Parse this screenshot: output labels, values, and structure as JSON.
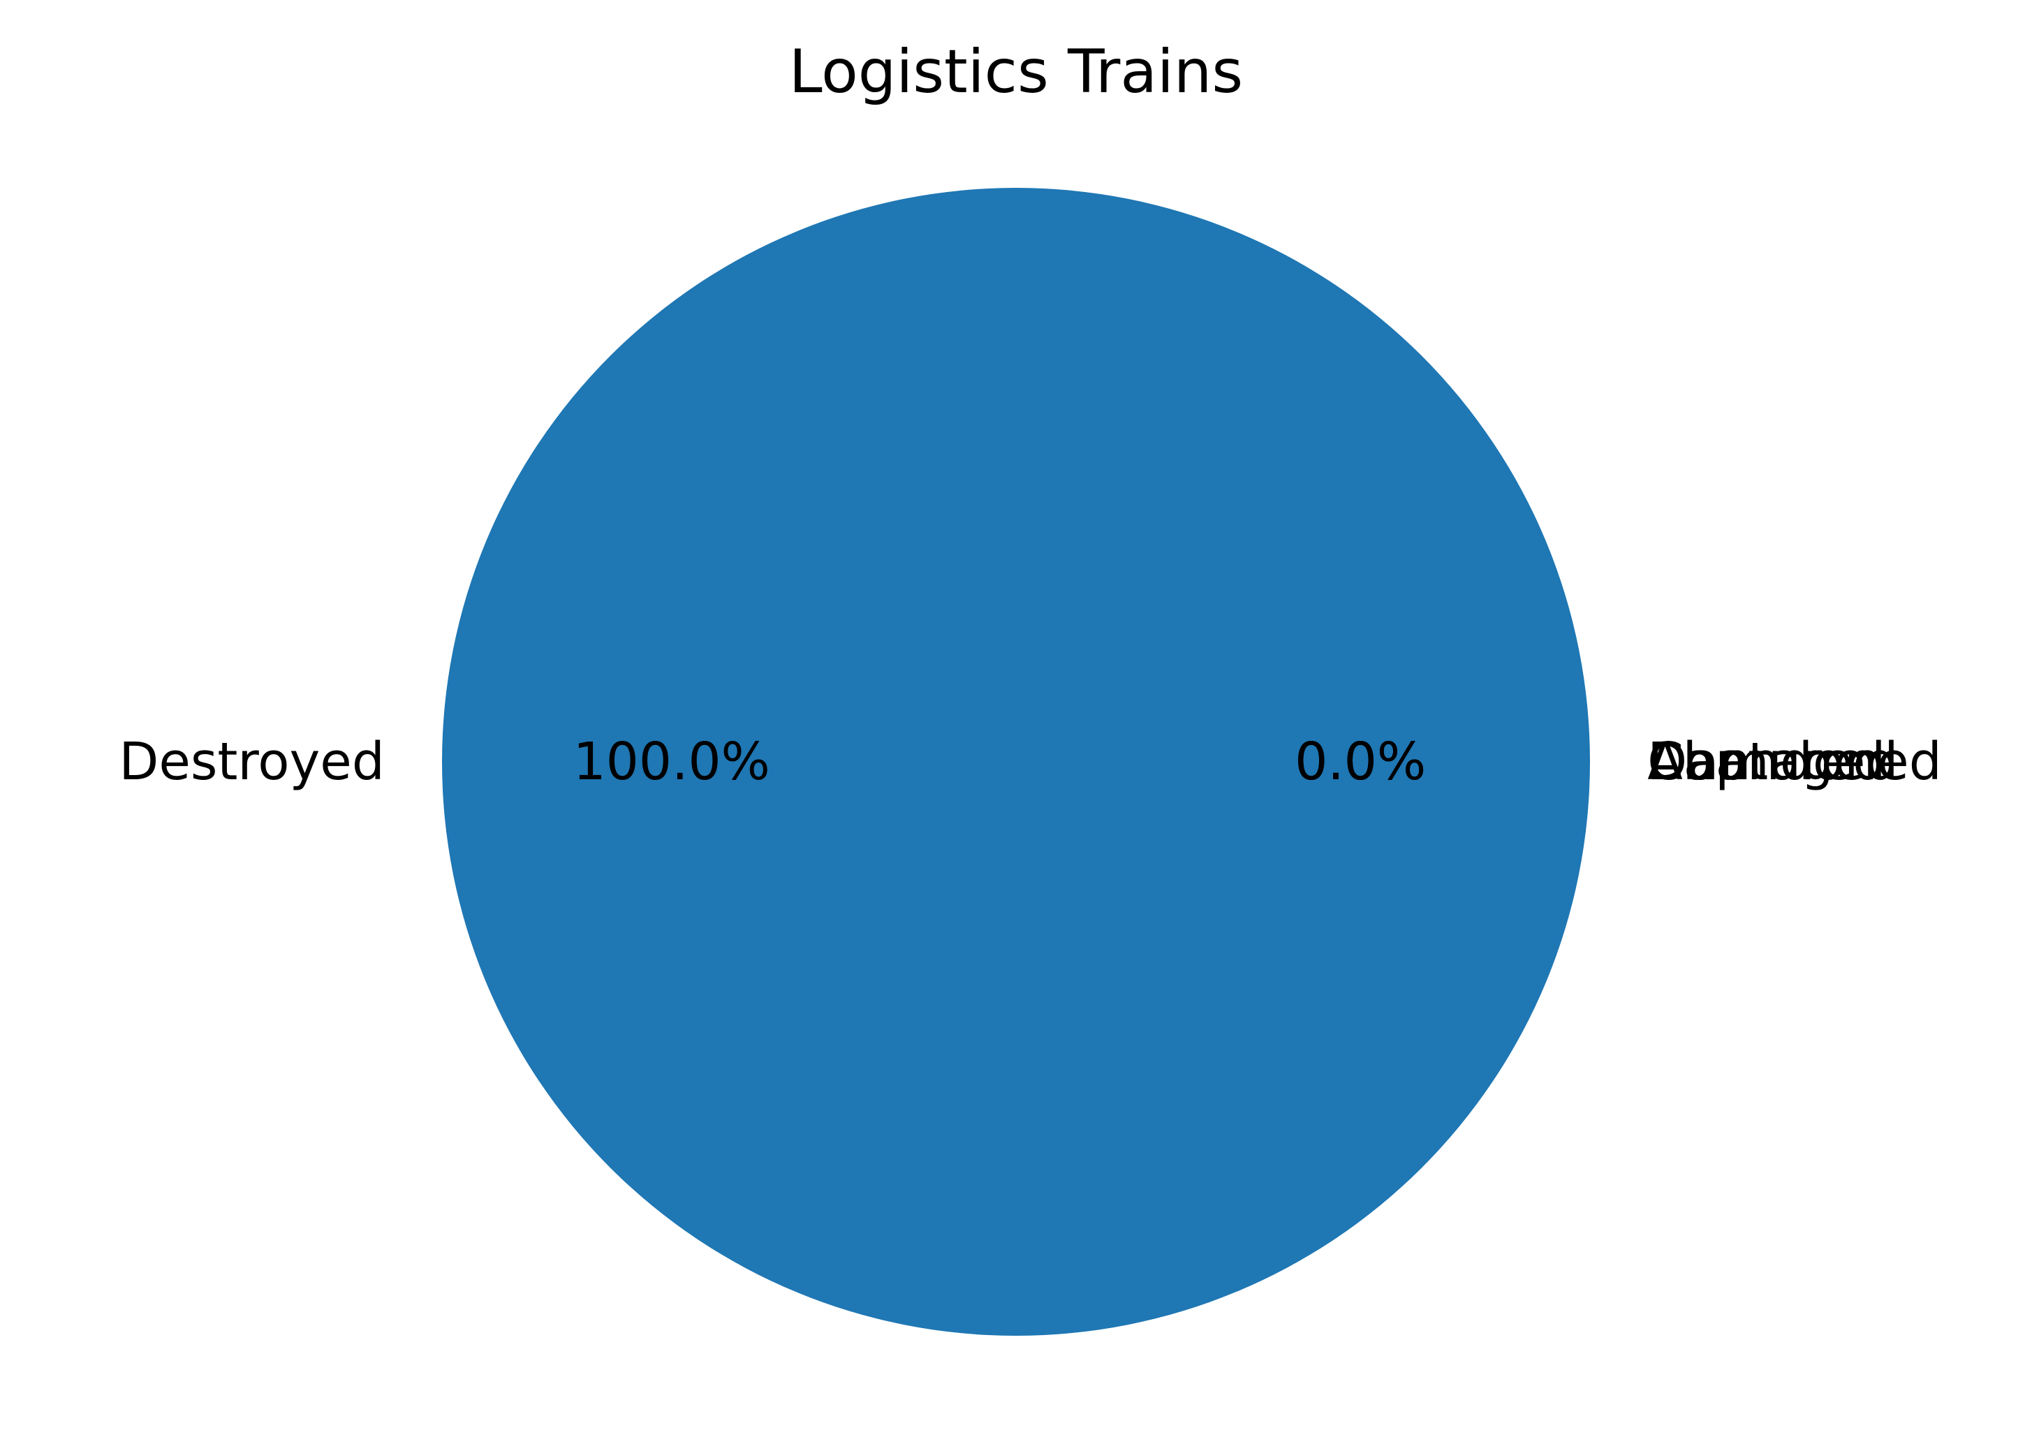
{
  "chart_data": {
    "type": "pie",
    "title": "Logistics Trains",
    "categories": [
      "Destroyed",
      "Damaged",
      "Abandoned",
      "Captured"
    ],
    "values": [
      1,
      0,
      0,
      0
    ],
    "percent_labels": [
      "100.0%",
      "0.0%",
      "0.0%",
      "0.0%"
    ],
    "colors": [
      "#1f77b4",
      "#ff7f0e",
      "#2ca02c",
      "#d62728"
    ],
    "legend": "none"
  }
}
